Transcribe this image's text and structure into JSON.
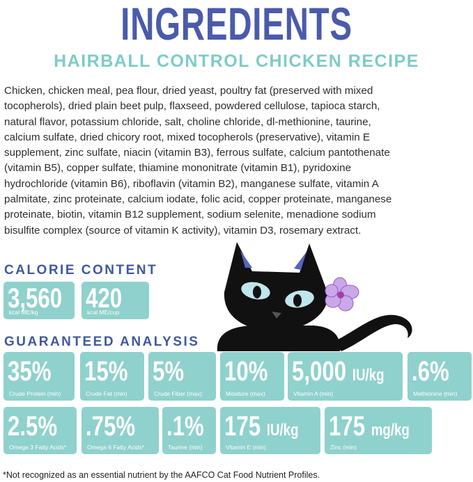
{
  "title": "INGREDIENTS",
  "subtitle": "HAIRBALL CONTROL CHICKEN RECIPE",
  "ingredients": [
    "Chicken, chicken meal, pea flour, dried yeast, poultry fat (preserved with mixed",
    "tocopherols), dried plain beet pulp, flaxseed, powdered cellulose, tapioca starch,",
    "natural flavor, potassium chloride, salt, choline chloride, dl-methionine, taurine,",
    "calcium sulfate, dried chicory root, mixed tocopherols (preservative), vitamin E",
    "supplement, zinc sulfate, niacin (vitamin B3), ferrous sulfate, calcium pantothenate",
    "(vitamin B5), copper sulfate, thiamine mononitrate (vitamin B1), pyridoxine",
    "hydrochloride (vitamin B6), riboflavin (vitamin B2), manganese sulfate, vitamin A",
    "palmitate, zinc proteinate, calcium iodate, folic acid, copper proteinate, manganese",
    "proteinate, biotin, vitamin B12 supplement, sodium selenite, menadione sodium",
    "bisulfite complex (source of vitamin K activity), vitamin D3, rosemary extract."
  ],
  "calorie_content": {
    "heading": "CALORIE CONTENT",
    "items": [
      {
        "value": "3,560",
        "label": "kcal ME/kg"
      },
      {
        "value": "420",
        "label": "kcal ME/cup"
      }
    ]
  },
  "guaranteed_analysis": {
    "heading": "GUARANTEED ANALYSIS",
    "items": [
      {
        "value": "35%",
        "label": "Crude Protein (min)"
      },
      {
        "value": "15%",
        "label": "Crude Fat (min)"
      },
      {
        "value": "5%",
        "label": "Crude Fiber (max)"
      },
      {
        "value": "10%",
        "label": "Moisture (max)"
      },
      {
        "value": "5,000",
        "unit": "IU/kg",
        "label": "Vitamin A (min)"
      },
      {
        "value": ".6%",
        "label": "Methionine (min)"
      },
      {
        "value": "2.5%",
        "label": "Omega 3 Fatty Acids*"
      },
      {
        "value": ".75%",
        "label": "Omega 6 Fatty Acids*"
      },
      {
        "value": ".1%",
        "label": "Taurine (min)"
      },
      {
        "value": "175",
        "unit": "IU/kg",
        "label": "Vitamin E (min)"
      },
      {
        "value": "175",
        "unit": "mg/kg",
        "label": "Zinc (min)"
      }
    ]
  },
  "footnote": "*Not recognized as an essential nutrient by the AAFCO Cat Food Nutrient Profiles."
}
